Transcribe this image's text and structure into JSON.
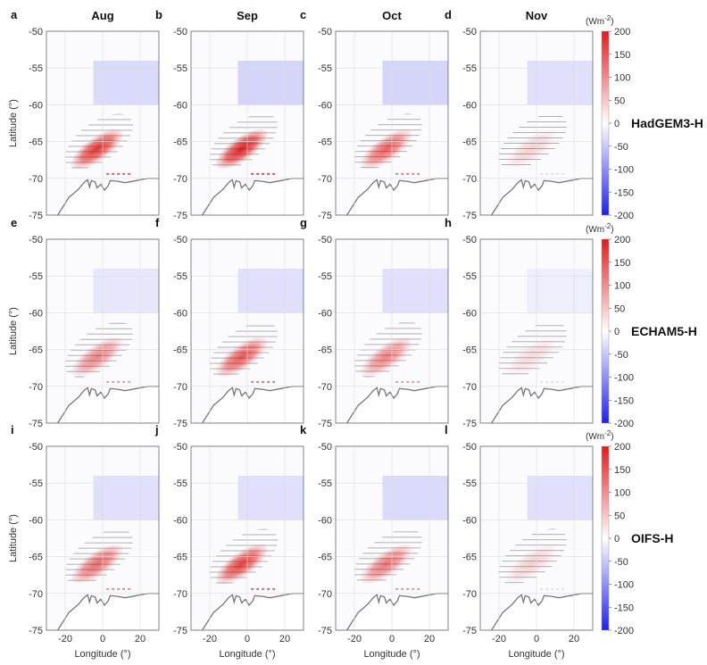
{
  "figure": {
    "columns": [
      "Aug",
      "Sep",
      "Oct",
      "Nov"
    ],
    "rows": [
      "HadGEM3-H",
      "ECHAM5-H",
      "OIFS-H"
    ],
    "panel_letters": [
      "a",
      "b",
      "c",
      "d",
      "e",
      "f",
      "g",
      "h",
      "i",
      "j",
      "k",
      "l"
    ],
    "xlabel": "Longitude (°)",
    "ylabel": "Latitude (°)",
    "colorbar_unit": "(Wm",
    "colorbar_unit_exp": "-2",
    "colorbar_unit_close": ")",
    "colorbar_ticks": [
      "200",
      "150",
      "100",
      "50",
      "0",
      "-50",
      "-100",
      "-150",
      "-200"
    ],
    "colors": {
      "positive": "#e41a1c",
      "negative": "#1f1ff0",
      "coast": "#777777",
      "hatch": "#333333"
    }
  },
  "chart_data": {
    "type": "heatmap",
    "description_units": "Wm-2",
    "xlim": [
      -30,
      30
    ],
    "ylim": [
      -75,
      -50
    ],
    "xticks": [
      -20,
      0,
      20
    ],
    "yticks": [
      -50,
      -55,
      -60,
      -65,
      -70,
      -75
    ],
    "clim": [
      -200,
      200
    ],
    "colorbar_ticks": [
      200,
      150,
      100,
      50,
      0,
      -50,
      -100,
      -150,
      -200
    ],
    "grid": true,
    "panels": [
      {
        "letter": "a",
        "row": "HadGEM3-H",
        "month": "Aug",
        "anomaly_max": 180,
        "negative_band": -25
      },
      {
        "letter": "b",
        "row": "HadGEM3-H",
        "month": "Sep",
        "anomaly_max": 200,
        "negative_band": -30
      },
      {
        "letter": "c",
        "row": "HadGEM3-H",
        "month": "Oct",
        "anomaly_max": 140,
        "negative_band": -30
      },
      {
        "letter": "d",
        "row": "HadGEM3-H",
        "month": "Nov",
        "anomaly_max": 40,
        "negative_band": -20
      },
      {
        "letter": "e",
        "row": "ECHAM5-H",
        "month": "Aug",
        "anomaly_max": 110,
        "negative_band": -15
      },
      {
        "letter": "f",
        "row": "ECHAM5-H",
        "month": "Sep",
        "anomaly_max": 150,
        "negative_band": -20
      },
      {
        "letter": "g",
        "row": "ECHAM5-H",
        "month": "Oct",
        "anomaly_max": 110,
        "negative_band": -20
      },
      {
        "letter": "h",
        "row": "ECHAM5-H",
        "month": "Nov",
        "anomaly_max": 30,
        "negative_band": -10
      },
      {
        "letter": "i",
        "row": "OIFS-H",
        "month": "Aug",
        "anomaly_max": 130,
        "negative_band": -20
      },
      {
        "letter": "j",
        "row": "OIFS-H",
        "month": "Sep",
        "anomaly_max": 170,
        "negative_band": -20
      },
      {
        "letter": "k",
        "row": "OIFS-H",
        "month": "Oct",
        "anomaly_max": 120,
        "negative_band": -25
      },
      {
        "letter": "l",
        "row": "OIFS-H",
        "month": "Nov",
        "anomaly_max": 40,
        "negative_band": -20
      }
    ]
  }
}
